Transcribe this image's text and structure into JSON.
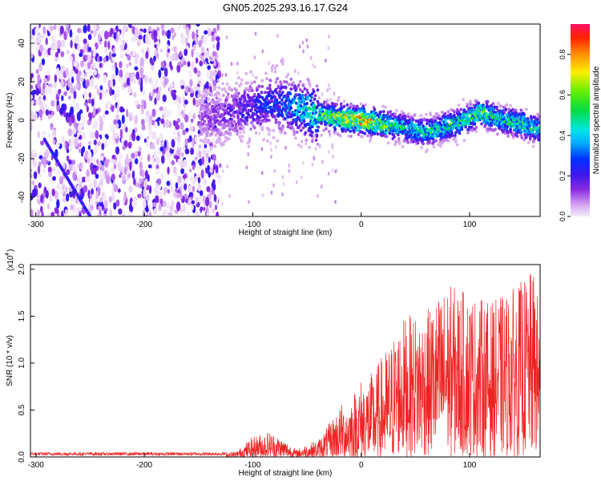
{
  "figure_title": "GN05.2025.293.16.17.G24",
  "colors": {
    "snr_line": "#ee2222",
    "axis": "#000000"
  },
  "chart_data": [
    {
      "type": "heatmap",
      "title": "GN05.2025.293.16.17.G24",
      "xlabel": "Height of straight line (km)",
      "ylabel": "Frequency (Hz)",
      "xlim": [
        -305,
        165
      ],
      "ylim": [
        -50,
        50
      ],
      "xticks": [
        -300,
        -200,
        -100,
        0,
        100
      ],
      "xtick_labels": [
        "-300",
        "-200",
        "-100",
        "0",
        "100"
      ],
      "yticks": [
        -40,
        -20,
        0,
        20,
        40
      ],
      "ytick_labels": [
        "-40",
        "-20",
        "0",
        "20",
        "40"
      ],
      "colorbar": {
        "label": "Normalized spectral amplitude",
        "range": [
          0,
          0.95
        ],
        "ticks": [
          0,
          0.2,
          0.4,
          0.6,
          0.8
        ],
        "tick_labels": [
          "0.0",
          "0.2",
          "0.4",
          "0.6",
          "0.8"
        ]
      },
      "noise_region_x": [
        -305,
        -130
      ],
      "diagonal_feature": {
        "x": [
          -292,
          -250
        ],
        "y": [
          -10,
          -50
        ],
        "amplitude": 0.25
      },
      "ridge": {
        "x": [
          -150,
          -125,
          -100,
          -80,
          -60,
          -40,
          -20,
          0,
          20,
          40,
          60,
          80,
          100,
          110,
          130,
          150,
          165
        ],
        "y": [
          0,
          3,
          7,
          9,
          7,
          3,
          1,
          0,
          -2,
          -4,
          -6,
          -3,
          1,
          4,
          0,
          -2,
          -5
        ],
        "amplitude": [
          0.12,
          0.2,
          0.28,
          0.32,
          0.45,
          0.6,
          0.8,
          0.95,
          0.7,
          0.55,
          0.55,
          0.6,
          0.6,
          0.65,
          0.55,
          0.6,
          0.5
        ]
      }
    },
    {
      "type": "line",
      "xlabel": "Height of straight line (km)",
      "ylabel": "SNR (10 * v/v)",
      "y_multiplier_label": "(x10",
      "y_multiplier_exponent": "4",
      "xlim": [
        -305,
        165
      ],
      "ylim": [
        0,
        2.05
      ],
      "xticks": [
        -300,
        -200,
        -100,
        0,
        100
      ],
      "xtick_labels": [
        "-300",
        "-200",
        "-100",
        "0",
        "100"
      ],
      "yticks": [
        0,
        0.5,
        1.0,
        1.5,
        2.0
      ],
      "ytick_labels": [
        "0.0",
        "0.5",
        "1.0",
        "1.5",
        "2.0"
      ],
      "envelope": {
        "x": [
          -305,
          -130,
          -115,
          -100,
          -85,
          -70,
          -60,
          -50,
          -40,
          -30,
          -20,
          -10,
          0,
          10,
          20,
          30,
          40,
          60,
          80,
          100,
          120,
          140,
          160,
          165
        ],
        "y": [
          0.05,
          0.05,
          0.06,
          0.22,
          0.28,
          0.18,
          0.08,
          0.14,
          0.18,
          0.35,
          0.55,
          0.65,
          0.85,
          0.9,
          1.1,
          1.3,
          1.5,
          1.55,
          1.85,
          1.75,
          1.65,
          1.8,
          2.0,
          1.5
        ]
      }
    }
  ]
}
